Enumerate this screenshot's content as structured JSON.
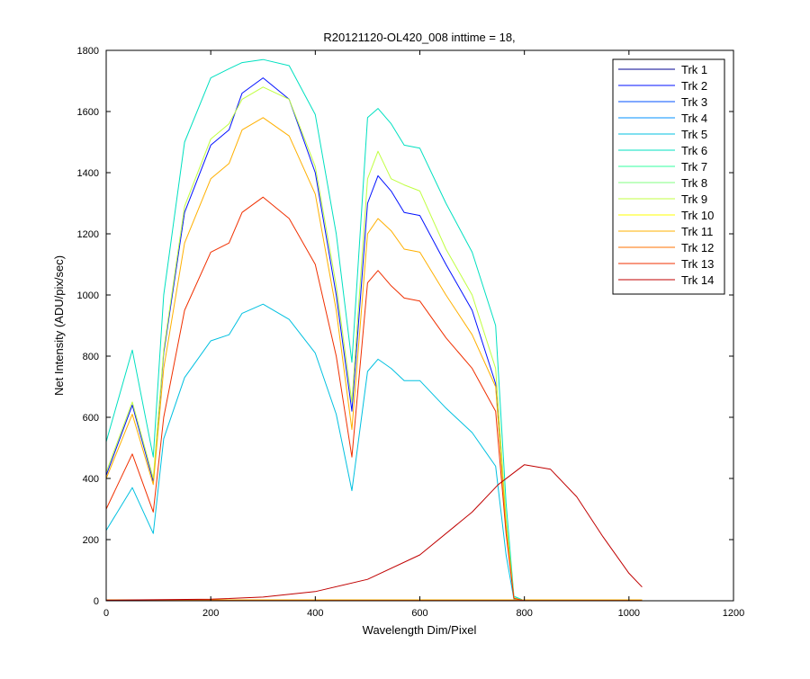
{
  "chart_data": {
    "type": "line",
    "title": "R20121120-OL420_008 inttime = 18,",
    "xlabel": "Wavelength Dim/Pixel",
    "ylabel": "Net Intensity (ADU/pix/sec)",
    "xlim": [
      0,
      1200
    ],
    "ylim": [
      0,
      1800
    ],
    "xticks": [
      0,
      200,
      400,
      600,
      800,
      1000,
      1200
    ],
    "yticks": [
      0,
      200,
      400,
      600,
      800,
      1000,
      1200,
      1400,
      1600,
      1800
    ],
    "grid": false,
    "legend_position": "top-right",
    "series": [
      {
        "name": "Trk 1",
        "color": "#000090",
        "x": [
          0,
          1025
        ],
        "y": [
          2,
          2
        ]
      },
      {
        "name": "Trk 2",
        "color": "#0010ff",
        "x": [
          0,
          50,
          90,
          110,
          150,
          200,
          235,
          260,
          300,
          350,
          400,
          440,
          470,
          500,
          520,
          545,
          570,
          600,
          650,
          700,
          745,
          765,
          780,
          800,
          1025
        ],
        "y": [
          410,
          640,
          390,
          810,
          1270,
          1490,
          1540,
          1660,
          1710,
          1640,
          1400,
          1000,
          620,
          1300,
          1390,
          1340,
          1270,
          1260,
          1100,
          950,
          710,
          250,
          10,
          0,
          0
        ]
      },
      {
        "name": "Trk 3",
        "color": "#0050ff",
        "x": [
          0,
          1025
        ],
        "y": [
          1,
          1
        ]
      },
      {
        "name": "Trk 4",
        "color": "#0090ff",
        "x": [
          0,
          1025
        ],
        "y": [
          1,
          1
        ]
      },
      {
        "name": "Trk 5",
        "color": "#00c0e0",
        "x": [
          0,
          50,
          90,
          110,
          150,
          200,
          235,
          260,
          300,
          350,
          400,
          440,
          470,
          500,
          520,
          545,
          570,
          600,
          650,
          700,
          745,
          765,
          780,
          800,
          1025
        ],
        "y": [
          230,
          370,
          220,
          530,
          730,
          850,
          870,
          940,
          970,
          920,
          810,
          610,
          360,
          750,
          790,
          760,
          720,
          720,
          630,
          550,
          440,
          150,
          5,
          0,
          0
        ]
      },
      {
        "name": "Trk 6",
        "color": "#00e0c0",
        "x": [
          0,
          50,
          90,
          110,
          150,
          200,
          235,
          260,
          300,
          350,
          400,
          440,
          470,
          500,
          520,
          545,
          570,
          600,
          650,
          700,
          745,
          765,
          780,
          800,
          1025
        ],
        "y": [
          520,
          820,
          470,
          1000,
          1500,
          1710,
          1740,
          1760,
          1770,
          1750,
          1590,
          1200,
          780,
          1580,
          1610,
          1560,
          1490,
          1480,
          1300,
          1140,
          900,
          320,
          15,
          0,
          0
        ]
      },
      {
        "name": "Trk 7",
        "color": "#30ffa0",
        "x": [
          0,
          1025
        ],
        "y": [
          3,
          3
        ]
      },
      {
        "name": "Trk 8",
        "color": "#80ff80",
        "x": [
          0,
          1025
        ],
        "y": [
          2,
          2
        ]
      },
      {
        "name": "Trk 9",
        "color": "#c0ff40",
        "x": [
          0,
          50,
          90,
          110,
          150,
          200,
          235,
          260,
          300,
          350,
          400,
          440,
          470,
          500,
          520,
          545,
          570,
          600,
          650,
          700,
          745,
          765,
          780,
          800,
          1025
        ],
        "y": [
          420,
          650,
          400,
          820,
          1290,
          1510,
          1560,
          1640,
          1680,
          1640,
          1420,
          1030,
          650,
          1380,
          1470,
          1380,
          1360,
          1340,
          1150,
          1000,
          760,
          270,
          10,
          0,
          0
        ]
      },
      {
        "name": "Trk 10",
        "color": "#ffff00",
        "x": [
          0,
          1025
        ],
        "y": [
          3,
          3
        ]
      },
      {
        "name": "Trk 11",
        "color": "#ffb000",
        "x": [
          0,
          50,
          90,
          110,
          150,
          200,
          235,
          260,
          300,
          350,
          400,
          440,
          470,
          500,
          520,
          545,
          570,
          600,
          650,
          700,
          745,
          765,
          780,
          800,
          1025
        ],
        "y": [
          400,
          610,
          380,
          760,
          1170,
          1380,
          1430,
          1540,
          1580,
          1520,
          1330,
          950,
          560,
          1200,
          1250,
          1210,
          1150,
          1140,
          1000,
          870,
          700,
          240,
          8,
          0,
          0
        ]
      },
      {
        "name": "Trk 12",
        "color": "#ff7000",
        "x": [
          0,
          1025
        ],
        "y": [
          2,
          2
        ]
      },
      {
        "name": "Trk 13",
        "color": "#f03000",
        "x": [
          0,
          50,
          90,
          110,
          150,
          200,
          235,
          260,
          300,
          350,
          400,
          440,
          470,
          500,
          520,
          545,
          570,
          600,
          650,
          700,
          745,
          765,
          780,
          800,
          1025
        ],
        "y": [
          300,
          480,
          290,
          600,
          950,
          1140,
          1170,
          1270,
          1320,
          1250,
          1100,
          800,
          470,
          1040,
          1080,
          1030,
          990,
          980,
          860,
          760,
          620,
          220,
          8,
          0,
          0
        ]
      },
      {
        "name": "Trk 14",
        "color": "#c00000",
        "x": [
          0,
          200,
          300,
          400,
          500,
          600,
          700,
          750,
          800,
          850,
          900,
          950,
          1000,
          1025
        ],
        "y": [
          2,
          5,
          12,
          30,
          70,
          150,
          290,
          380,
          445,
          430,
          340,
          210,
          90,
          45
        ]
      }
    ]
  }
}
